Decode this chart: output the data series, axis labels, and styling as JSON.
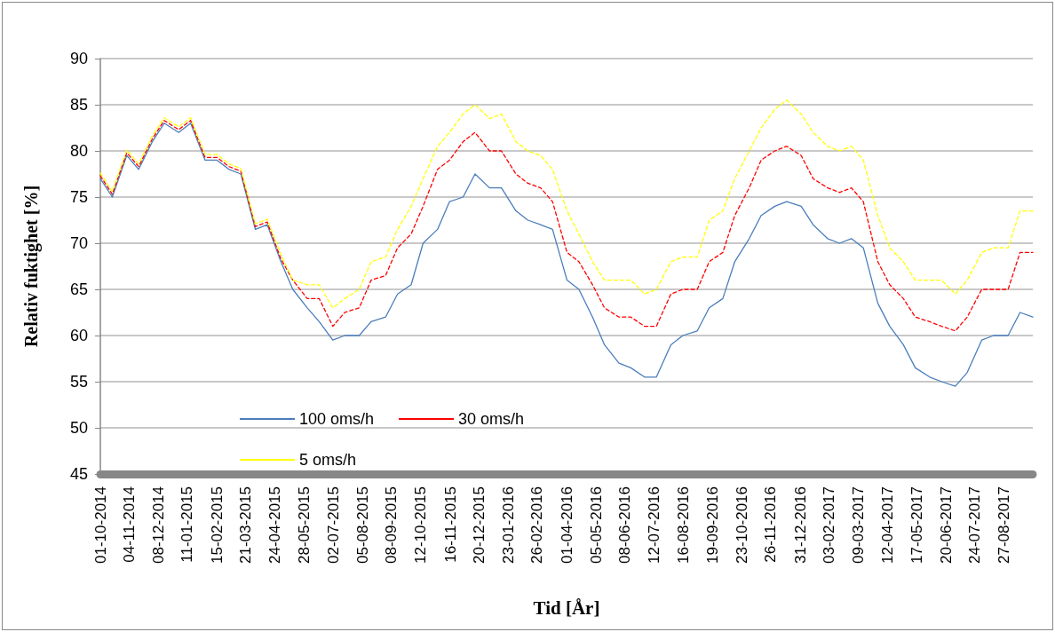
{
  "chart_data": {
    "type": "line",
    "xlabel": "Tid [År]",
    "ylabel": "Relativ fuktighet [%]",
    "x": [
      "2014-10-01",
      "2014-10-15",
      "2014-11-01",
      "2014-11-15",
      "2014-12-01",
      "2014-12-15",
      "2015-01-01",
      "2015-01-15",
      "2015-02-01",
      "2015-02-15",
      "2015-03-01",
      "2015-03-15",
      "2015-04-01",
      "2015-04-15",
      "2015-05-01",
      "2015-05-15",
      "2015-06-01",
      "2015-06-15",
      "2015-07-01",
      "2015-07-15",
      "2015-08-01",
      "2015-08-15",
      "2015-09-01",
      "2015-09-15",
      "2015-10-01",
      "2015-10-15",
      "2015-11-01",
      "2015-11-15",
      "2015-12-01",
      "2015-12-15",
      "2016-01-01",
      "2016-01-15",
      "2016-02-01",
      "2016-02-15",
      "2016-03-01",
      "2016-03-15",
      "2016-04-01",
      "2016-04-15",
      "2016-05-01",
      "2016-05-15",
      "2016-06-01",
      "2016-06-15",
      "2016-07-01",
      "2016-07-15",
      "2016-08-01",
      "2016-08-15",
      "2016-09-01",
      "2016-09-15",
      "2016-10-01",
      "2016-10-15",
      "2016-11-01",
      "2016-11-15",
      "2016-12-01",
      "2016-12-15",
      "2017-01-01",
      "2017-01-15",
      "2017-02-01",
      "2017-02-15",
      "2017-03-01",
      "2017-03-15",
      "2017-04-01",
      "2017-04-15",
      "2017-05-01",
      "2017-05-15",
      "2017-06-01",
      "2017-06-15",
      "2017-07-01",
      "2017-07-15",
      "2017-08-01",
      "2017-08-15",
      "2017-09-01",
      "2017-09-15",
      "2017-09-30"
    ],
    "series": [
      {
        "name": "100 oms/h",
        "color": "#4a7ebb",
        "line_style": "solid",
        "values": [
          77,
          75,
          79.5,
          78,
          81,
          83,
          82,
          83,
          79,
          79,
          78,
          77.5,
          71.5,
          72,
          68,
          65,
          63,
          61.5,
          59.5,
          60,
          60,
          61.5,
          62,
          64.5,
          65.5,
          70,
          71.5,
          74.5,
          75,
          77.5,
          76,
          76,
          73.5,
          72.5,
          72,
          71.5,
          66,
          65,
          62,
          59,
          57,
          56.5,
          55.5,
          55.5,
          59,
          60,
          60.5,
          63,
          64,
          68,
          70.5,
          73,
          74,
          74.5,
          74,
          72,
          70.5,
          70,
          70.5,
          69.5,
          63.5,
          61,
          59,
          56.5,
          55.5,
          55,
          54.5,
          56,
          59.5,
          60,
          60,
          62.5,
          62
        ]
      },
      {
        "name": "30 oms/h",
        "color": "#ff0000",
        "line_style": "dashed",
        "values": [
          77.3,
          75.3,
          79.8,
          78.3,
          81.3,
          83.3,
          82.3,
          83.3,
          79.3,
          79.3,
          78.3,
          77.8,
          71.8,
          72.3,
          68.3,
          66,
          64,
          64,
          61,
          62.5,
          63,
          66,
          66.5,
          69.5,
          71,
          74,
          78,
          79,
          81,
          82,
          80,
          80,
          77.5,
          76.5,
          76,
          74.5,
          69,
          68,
          65.5,
          63,
          62,
          62,
          61,
          61,
          64.5,
          65,
          65,
          68,
          69,
          73,
          76,
          79,
          80,
          80.5,
          79.5,
          77,
          76,
          75.5,
          76,
          74.5,
          68,
          65.5,
          64,
          62,
          61.5,
          61,
          60.5,
          62,
          65,
          65,
          65,
          69,
          69
        ]
      },
      {
        "name": "5 oms/h",
        "color": "#ffff00",
        "line_style": "dashed",
        "values": [
          77.6,
          75.6,
          80.1,
          78.6,
          81.6,
          83.6,
          82.6,
          83.6,
          79.6,
          79.6,
          78.6,
          78.1,
          72.1,
          72.6,
          68.8,
          66,
          65.5,
          65.5,
          63,
          64,
          65,
          68,
          68.5,
          71.5,
          74,
          77,
          80.5,
          82,
          84,
          85,
          83.5,
          84,
          81,
          80,
          79.5,
          78,
          73.5,
          71,
          68,
          66,
          66,
          66,
          64.5,
          65,
          68,
          68.5,
          68.5,
          72.5,
          73.5,
          77,
          80,
          82.5,
          84.5,
          85.5,
          84,
          82,
          80.5,
          80,
          80.5,
          79,
          73,
          69.5,
          68,
          66,
          66,
          66,
          64.5,
          66,
          69,
          69.5,
          69.5,
          73.5,
          73.5
        ]
      }
    ],
    "xlim": [
      "2014-10-01",
      "2017-09-30"
    ],
    "xticks": [
      {
        "value": "2014-10-01",
        "label": "01-10-2014"
      },
      {
        "value": "2014-11-04",
        "label": "04-11-2014"
      },
      {
        "value": "2014-12-08",
        "label": "08-12-2014"
      },
      {
        "value": "2015-01-11",
        "label": "11-01-2015"
      },
      {
        "value": "2015-02-15",
        "label": "15-02-2015"
      },
      {
        "value": "2015-03-21",
        "label": "21-03-2015"
      },
      {
        "value": "2015-04-24",
        "label": "24-04-2015"
      },
      {
        "value": "2015-05-28",
        "label": "28-05-2015"
      },
      {
        "value": "2015-07-02",
        "label": "02-07-2015"
      },
      {
        "value": "2015-08-05",
        "label": "05-08-2015"
      },
      {
        "value": "2015-09-08",
        "label": "08-09-2015"
      },
      {
        "value": "2015-10-12",
        "label": "12-10-2015"
      },
      {
        "value": "2015-11-16",
        "label": "16-11-2015"
      },
      {
        "value": "2015-12-20",
        "label": "20-12-2015"
      },
      {
        "value": "2016-01-23",
        "label": "23-01-2016"
      },
      {
        "value": "2016-02-26",
        "label": "26-02-2016"
      },
      {
        "value": "2016-04-01",
        "label": "01-04-2016"
      },
      {
        "value": "2016-05-05",
        "label": "05-05-2016"
      },
      {
        "value": "2016-06-08",
        "label": "08-06-2016"
      },
      {
        "value": "2016-07-12",
        "label": "12-07-2016"
      },
      {
        "value": "2016-08-16",
        "label": "16-08-2016"
      },
      {
        "value": "2016-09-19",
        "label": "19-09-2016"
      },
      {
        "value": "2016-10-23",
        "label": "23-10-2016"
      },
      {
        "value": "2016-11-26",
        "label": "26-11-2016"
      },
      {
        "value": "2016-12-31",
        "label": "31-12-2016"
      },
      {
        "value": "2017-02-03",
        "label": "03-02-2017"
      },
      {
        "value": "2017-03-09",
        "label": "09-03-2017"
      },
      {
        "value": "2017-04-12",
        "label": "12-04-2017"
      },
      {
        "value": "2017-05-17",
        "label": "17-05-2017"
      },
      {
        "value": "2017-06-20",
        "label": "20-06-2017"
      },
      {
        "value": "2017-07-24",
        "label": "24-07-2017"
      },
      {
        "value": "2017-08-27",
        "label": "27-08-2017"
      }
    ],
    "ylim": [
      45,
      90
    ],
    "yticks": [
      45,
      50,
      55,
      60,
      65,
      70,
      75,
      80,
      85,
      90
    ],
    "grid": "y",
    "legend": "bottom",
    "marker": "none"
  }
}
